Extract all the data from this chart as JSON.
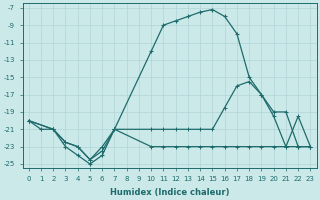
{
  "xlabel": "Humidex (Indice chaleur)",
  "bg_color": "#cce9ea",
  "grid_color": "#b0d4d6",
  "line_color": "#1e6b6b",
  "xlim": [
    -0.5,
    23.5
  ],
  "ylim": [
    -25.5,
    -6.5
  ],
  "yticks": [
    -7,
    -9,
    -11,
    -13,
    -15,
    -17,
    -19,
    -21,
    -23,
    -25
  ],
  "xticks": [
    0,
    1,
    2,
    3,
    4,
    5,
    6,
    7,
    8,
    9,
    10,
    11,
    12,
    13,
    14,
    15,
    16,
    17,
    18,
    19,
    20,
    21,
    22,
    23
  ],
  "line1_x": [
    0,
    1,
    2,
    3,
    4,
    5,
    6,
    7,
    10,
    11,
    12,
    13,
    14,
    15,
    16,
    17,
    18,
    19,
    20,
    21,
    22,
    23
  ],
  "line1_y": [
    -20,
    -21,
    -21,
    -23,
    -24,
    -25,
    -24,
    -21,
    -12,
    -9,
    -8.5,
    -8,
    -7.5,
    -7.2,
    -8,
    -10,
    -15,
    -17,
    -19,
    -19,
    -23,
    -23
  ],
  "line2_x": [
    0,
    2,
    3,
    4,
    5,
    6,
    7,
    10,
    11,
    12,
    13,
    14,
    15,
    16,
    17,
    18,
    19,
    20,
    21,
    22,
    23
  ],
  "line2_y": [
    -20,
    -21,
    -22.5,
    -23,
    -24.5,
    -23,
    -21,
    -21,
    -21,
    -21,
    -21,
    -21,
    -21,
    -18.5,
    -16,
    -15.5,
    -17,
    -19.5,
    -23,
    -19.5,
    -23
  ],
  "line3_x": [
    0,
    2,
    3,
    4,
    5,
    6,
    7,
    10,
    11,
    12,
    13,
    14,
    15,
    16,
    17,
    18,
    19,
    20,
    21,
    22,
    23
  ],
  "line3_y": [
    -20,
    -21,
    -22.5,
    -23,
    -24.5,
    -23.5,
    -21,
    -23,
    -23,
    -23,
    -23,
    -23,
    -23,
    -23,
    -23,
    -23,
    -23,
    -23,
    -23,
    -23,
    -23
  ]
}
